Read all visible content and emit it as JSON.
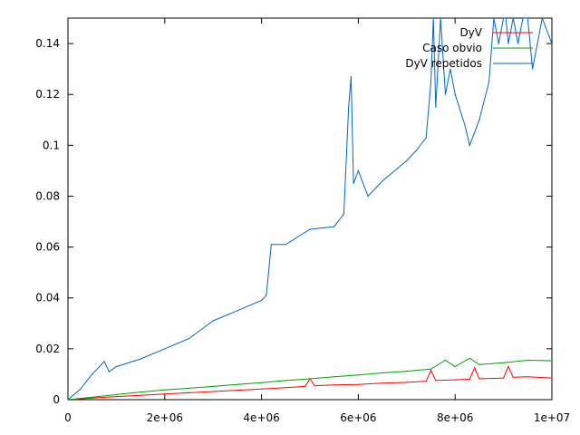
{
  "chart_data": {
    "type": "line",
    "title": "",
    "xlabel": "",
    "ylabel": "",
    "xlim": [
      0,
      10000000
    ],
    "ylim": [
      0,
      0.15
    ],
    "grid": false,
    "legend_position": "top-right",
    "x_ticks": [
      {
        "value": 0,
        "label": "0"
      },
      {
        "value": 2000000,
        "label": "2e+06"
      },
      {
        "value": 4000000,
        "label": "4e+06"
      },
      {
        "value": 6000000,
        "label": "6e+06"
      },
      {
        "value": 8000000,
        "label": "8e+06"
      },
      {
        "value": 10000000,
        "label": "1e+07"
      }
    ],
    "y_ticks": [
      {
        "value": 0,
        "label": "0"
      },
      {
        "value": 0.02,
        "label": "0.02"
      },
      {
        "value": 0.04,
        "label": "0.04"
      },
      {
        "value": 0.06,
        "label": "0.06"
      },
      {
        "value": 0.08,
        "label": "0.08"
      },
      {
        "value": 0.1,
        "label": "0.1"
      },
      {
        "value": 0.12,
        "label": "0.12"
      },
      {
        "value": 0.14,
        "label": "0.14"
      }
    ],
    "series": [
      {
        "name": "DyV",
        "color": "#ff0000",
        "x": [
          0,
          500000,
          1000000,
          1500000,
          2000000,
          2500000,
          3000000,
          3500000,
          4000000,
          4500000,
          4900000,
          5000000,
          5100000,
          5500000,
          6000000,
          6500000,
          7000000,
          7400000,
          7500000,
          7600000,
          8000000,
          8300000,
          8400000,
          8500000,
          9000000,
          9100000,
          9200000,
          9500000,
          10000000
        ],
        "y": [
          0,
          0.0006,
          0.0012,
          0.0017,
          0.0022,
          0.0027,
          0.0032,
          0.0037,
          0.0042,
          0.0047,
          0.0052,
          0.0082,
          0.0055,
          0.0058,
          0.006,
          0.0065,
          0.0068,
          0.0072,
          0.0115,
          0.0075,
          0.0078,
          0.008,
          0.0125,
          0.0082,
          0.0085,
          0.013,
          0.0088,
          0.009,
          0.0085
        ]
      },
      {
        "name": "Caso obvio",
        "color": "#00a000",
        "x": [
          0,
          500000,
          1000000,
          1500000,
          2000000,
          2500000,
          3000000,
          3500000,
          4000000,
          4500000,
          5000000,
          5500000,
          6000000,
          6500000,
          7000000,
          7500000,
          7800000,
          8000000,
          8300000,
          8500000,
          9000000,
          9500000,
          10000000
        ],
        "y": [
          0,
          0.001,
          0.002,
          0.003,
          0.0038,
          0.0045,
          0.0052,
          0.006,
          0.0067,
          0.0075,
          0.0082,
          0.009,
          0.0097,
          0.0105,
          0.0112,
          0.012,
          0.0155,
          0.013,
          0.0163,
          0.0138,
          0.0145,
          0.0155,
          0.0153
        ]
      },
      {
        "name": "DyV repetidos",
        "color": "#0066cc",
        "x": [
          0,
          250000,
          500000,
          750000,
          850000,
          1000000,
          1500000,
          2000000,
          2500000,
          3000000,
          3500000,
          4000000,
          4100000,
          4200000,
          4500000,
          5000000,
          5500000,
          5700000,
          5800000,
          5850000,
          5900000,
          6000000,
          6200000,
          6500000,
          7000000,
          7200000,
          7400000,
          7500000,
          7550000,
          7600000,
          7700000,
          7800000,
          7900000,
          8000000,
          8200000,
          8300000,
          8400000,
          8500000,
          8700000,
          8800000,
          8900000,
          9000000,
          9050000,
          9100000,
          9200000,
          9300000,
          9400000,
          9500000,
          9600000,
          9700000,
          9800000,
          10000000
        ],
        "y": [
          0,
          0.004,
          0.01,
          0.015,
          0.011,
          0.013,
          0.016,
          0.02,
          0.024,
          0.031,
          0.035,
          0.039,
          0.041,
          0.061,
          0.061,
          0.067,
          0.068,
          0.073,
          0.115,
          0.127,
          0.085,
          0.09,
          0.08,
          0.086,
          0.094,
          0.098,
          0.103,
          0.125,
          0.15,
          0.115,
          0.15,
          0.12,
          0.13,
          0.12,
          0.108,
          0.1,
          0.105,
          0.11,
          0.125,
          0.15,
          0.14,
          0.15,
          0.15,
          0.14,
          0.15,
          0.14,
          0.15,
          0.15,
          0.13,
          0.14,
          0.15,
          0.14
        ]
      }
    ]
  }
}
